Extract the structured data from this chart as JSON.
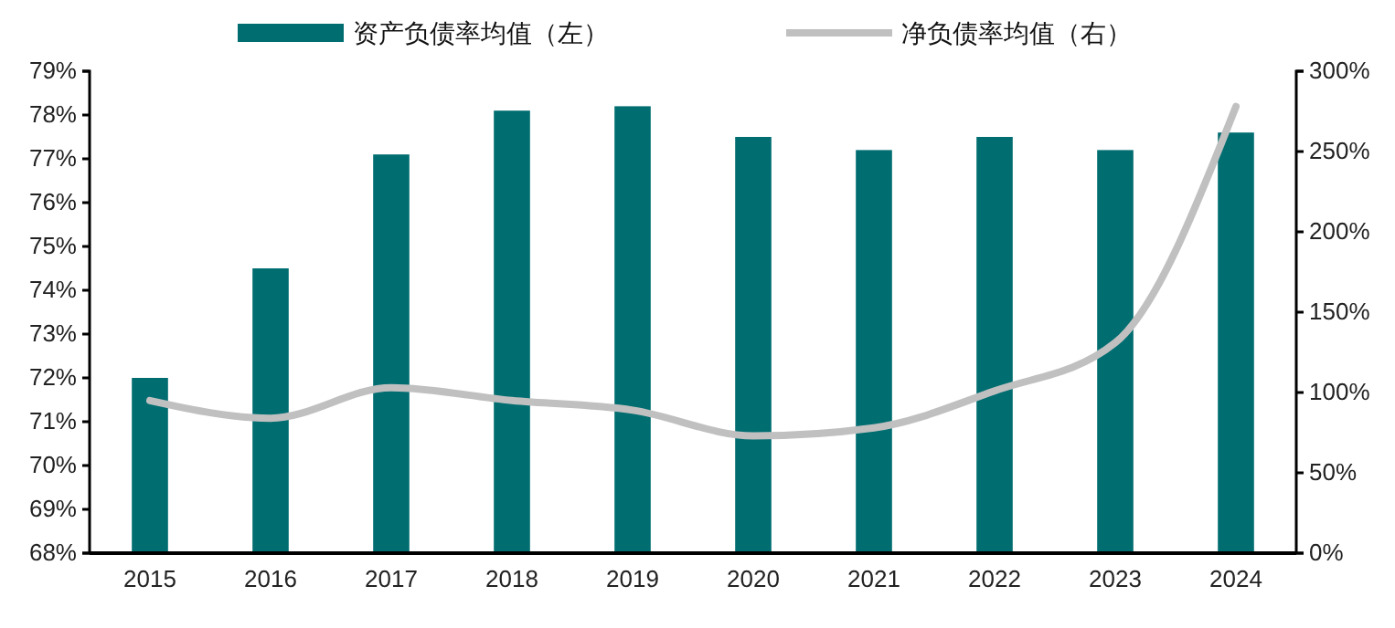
{
  "chart_data": {
    "type": "bar",
    "categories": [
      "2015",
      "2016",
      "2017",
      "2018",
      "2019",
      "2020",
      "2021",
      "2022",
      "2023",
      "2024"
    ],
    "series": [
      {
        "name": "资产负债率均值（左）",
        "color": "#006d70",
        "values": [
          72.0,
          74.5,
          77.1,
          78.1,
          78.2,
          77.5,
          77.2,
          77.5,
          77.2,
          77.6
        ]
      },
      {
        "name": "净负债率均值（右）",
        "type": "line",
        "axis": "y2",
        "color": "#c0c0c0",
        "values": [
          95,
          84,
          103,
          95,
          89,
          73,
          78,
          101,
          131,
          278
        ]
      }
    ],
    "ylim": [
      68,
      79
    ],
    "yticks": [
      {
        "value": 68,
        "label": "68%"
      },
      {
        "value": 69,
        "label": "69%"
      },
      {
        "value": 70,
        "label": "70%"
      },
      {
        "value": 71,
        "label": "71%"
      },
      {
        "value": 72,
        "label": "72%"
      },
      {
        "value": 73,
        "label": "73%"
      },
      {
        "value": 74,
        "label": "74%"
      },
      {
        "value": 75,
        "label": "75%"
      },
      {
        "value": 76,
        "label": "76%"
      },
      {
        "value": 77,
        "label": "77%"
      },
      {
        "value": 78,
        "label": "78%"
      },
      {
        "value": 79,
        "label": "79%"
      }
    ],
    "y2lim": [
      0,
      300
    ],
    "y2ticks": [
      {
        "value": 0,
        "label": "0%"
      },
      {
        "value": 50,
        "label": "50%"
      },
      {
        "value": 100,
        "label": "100%"
      },
      {
        "value": 150,
        "label": "150%"
      },
      {
        "value": 200,
        "label": "200%"
      },
      {
        "value": 250,
        "label": "250%"
      },
      {
        "value": 300,
        "label": "300%"
      }
    ],
    "legend": "top",
    "marker": "none"
  }
}
